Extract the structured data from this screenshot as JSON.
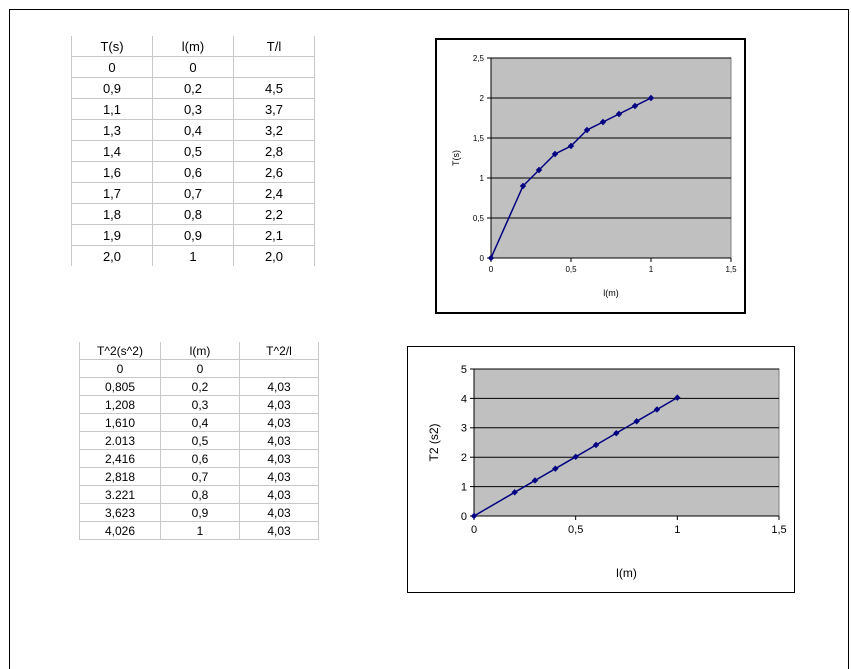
{
  "table1": {
    "headers": [
      "T(s)",
      "l(m)",
      "T/l"
    ],
    "rows": [
      [
        "0",
        "0",
        ""
      ],
      [
        "0,9",
        "0,2",
        "4,5"
      ],
      [
        "1,1",
        "0,3",
        "3,7"
      ],
      [
        "1,3",
        "0,4",
        "3,2"
      ],
      [
        "1,4",
        "0,5",
        "2,8"
      ],
      [
        "1,6",
        "0,6",
        "2,6"
      ],
      [
        "1,7",
        "0,7",
        "2,4"
      ],
      [
        "1,8",
        "0,8",
        "2,2"
      ],
      [
        "1,9",
        "0,9",
        "2,1"
      ],
      [
        "2,0",
        "1",
        "2,0"
      ]
    ]
  },
  "table2": {
    "headers": [
      "T^2(s^2)",
      "l(m)",
      "T^2/l"
    ],
    "rows": [
      [
        "0",
        "0",
        ""
      ],
      [
        "0,805",
        "0,2",
        "4,03"
      ],
      [
        "1,208",
        "0,3",
        "4,03"
      ],
      [
        "1,610",
        "0,4",
        "4,03"
      ],
      [
        "2.013",
        "0,5",
        "4,03"
      ],
      [
        "2,416",
        "0,6",
        "4,03"
      ],
      [
        "2,818",
        "0,7",
        "4,03"
      ],
      [
        "3.221",
        "0,8",
        "4,03"
      ],
      [
        "3,623",
        "0,9",
        "4,03"
      ],
      [
        "4,026",
        "1",
        "4,03"
      ]
    ]
  },
  "chart_data": [
    {
      "type": "line",
      "title": "",
      "xlabel": "l(m)",
      "ylabel": "T(s)",
      "x": [
        0,
        0.2,
        0.3,
        0.4,
        0.5,
        0.6,
        0.7,
        0.8,
        0.9,
        1
      ],
      "series": [
        {
          "values": [
            0,
            0.9,
            1.1,
            1.3,
            1.4,
            1.6,
            1.7,
            1.8,
            1.9,
            2.0
          ]
        }
      ],
      "xlim": [
        0,
        1.5
      ],
      "ylim": [
        0,
        2.5
      ],
      "xticks": [
        "0",
        "0,5",
        "1",
        "1,5"
      ],
      "yticks": [
        "0",
        "0,5",
        "1",
        "1,5",
        "2",
        "2,5"
      ],
      "grid": "horizontal",
      "plot_bg": "#c0c0c0",
      "series_color": "#000080"
    },
    {
      "type": "line",
      "title": "",
      "xlabel": "l(m)",
      "ylabel": "T2 (s2)",
      "x": [
        0,
        0.2,
        0.3,
        0.4,
        0.5,
        0.6,
        0.7,
        0.8,
        0.9,
        1
      ],
      "series": [
        {
          "values": [
            0,
            0.805,
            1.208,
            1.61,
            2.013,
            2.416,
            2.818,
            3.221,
            3.623,
            4.026
          ]
        }
      ],
      "xlim": [
        0,
        1.5
      ],
      "ylim": [
        0,
        5
      ],
      "xticks": [
        "0",
        "0,5",
        "1",
        "1,5"
      ],
      "yticks": [
        "0",
        "1",
        "2",
        "3",
        "4",
        "5"
      ],
      "grid": "horizontal",
      "plot_bg": "#c0c0c0",
      "series_color": "#000080"
    }
  ]
}
